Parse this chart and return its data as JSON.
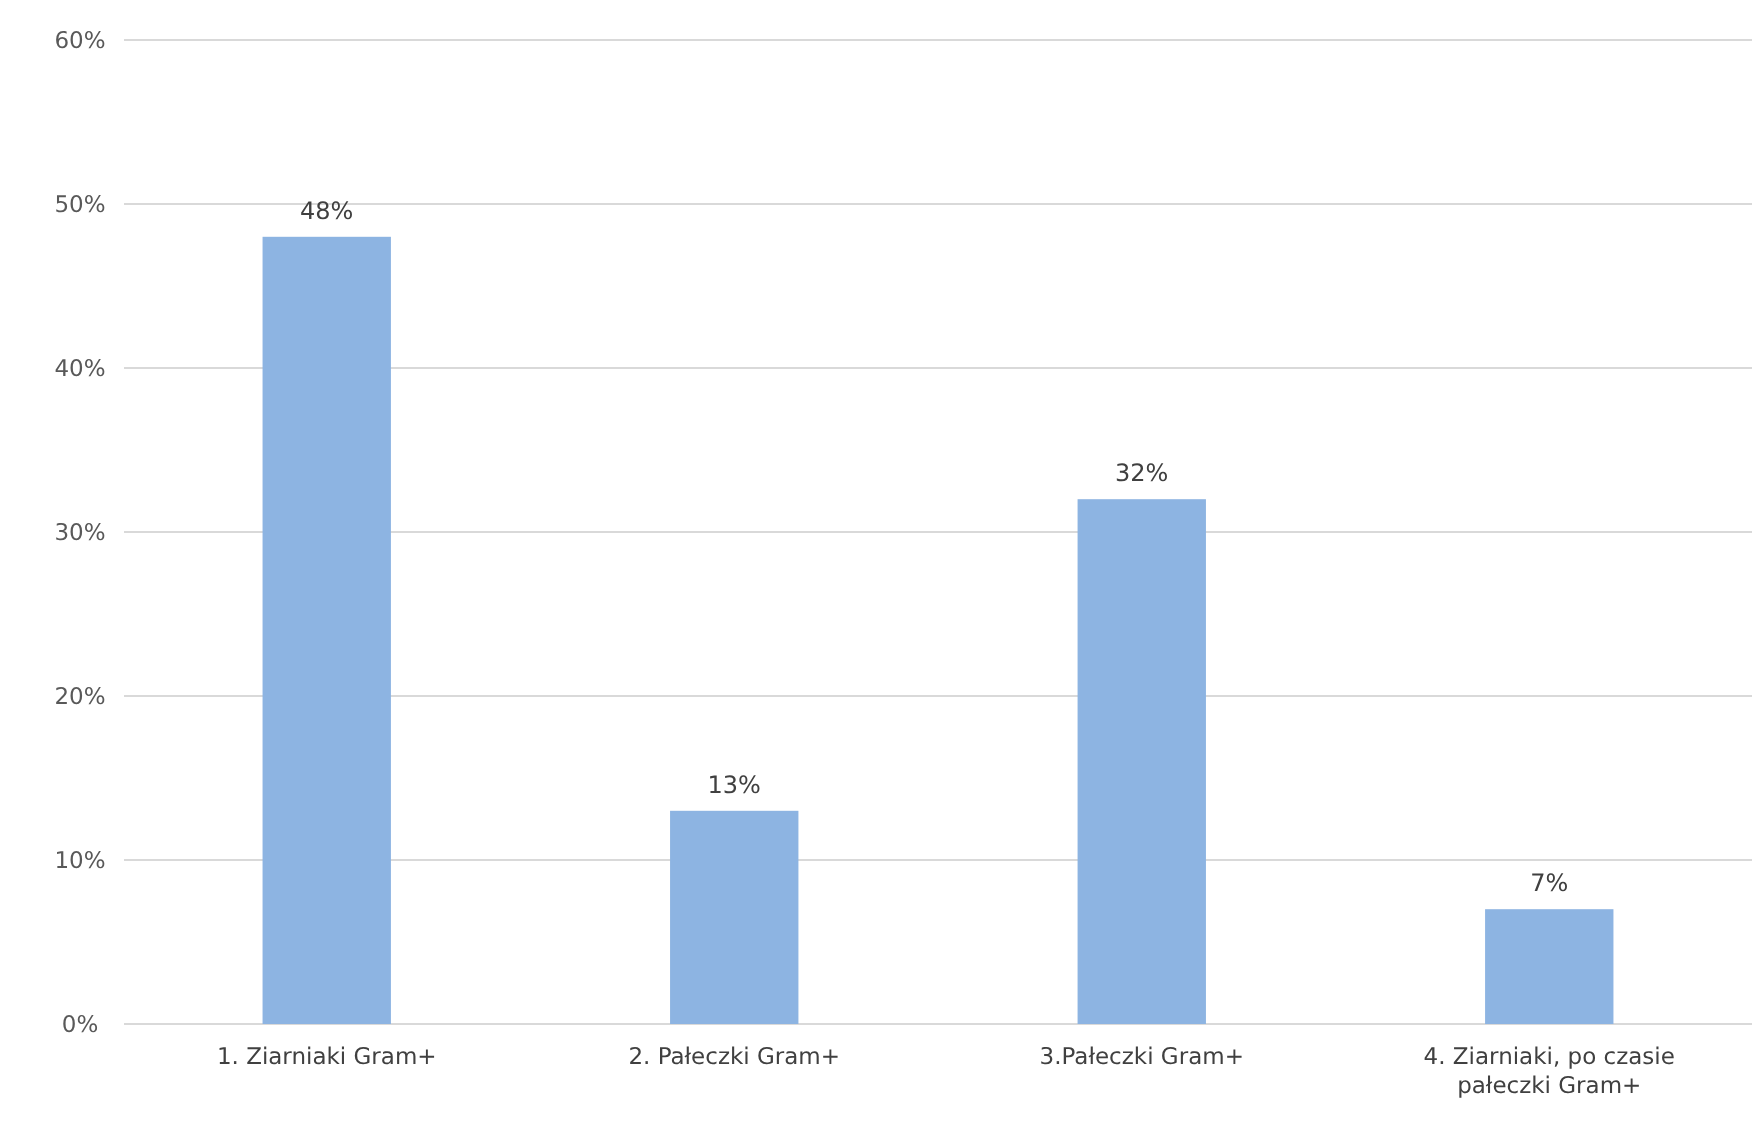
{
  "chart_data": {
    "type": "bar",
    "categories": [
      "1. Ziarniaki Gram+",
      "2. Pałeczki Gram+",
      "3.Pałeczki Gram+",
      "4. Ziarniaki, po czasie pałeczki Gram+"
    ],
    "values": [
      48,
      13,
      32,
      7
    ],
    "value_labels": [
      "48%",
      "13%",
      "32%",
      "7%"
    ],
    "color": "#8db4e2",
    "ylim": [
      0,
      60
    ],
    "yticks": [
      {
        "value": 0,
        "label": "0%"
      },
      {
        "value": 10,
        "label": "10%"
      },
      {
        "value": 20,
        "label": "20%"
      },
      {
        "value": 30,
        "label": "30%"
      },
      {
        "value": 40,
        "label": "40%"
      },
      {
        "value": 50,
        "label": "50%"
      },
      {
        "value": 60,
        "label": "60%"
      }
    ],
    "grid": "y"
  }
}
